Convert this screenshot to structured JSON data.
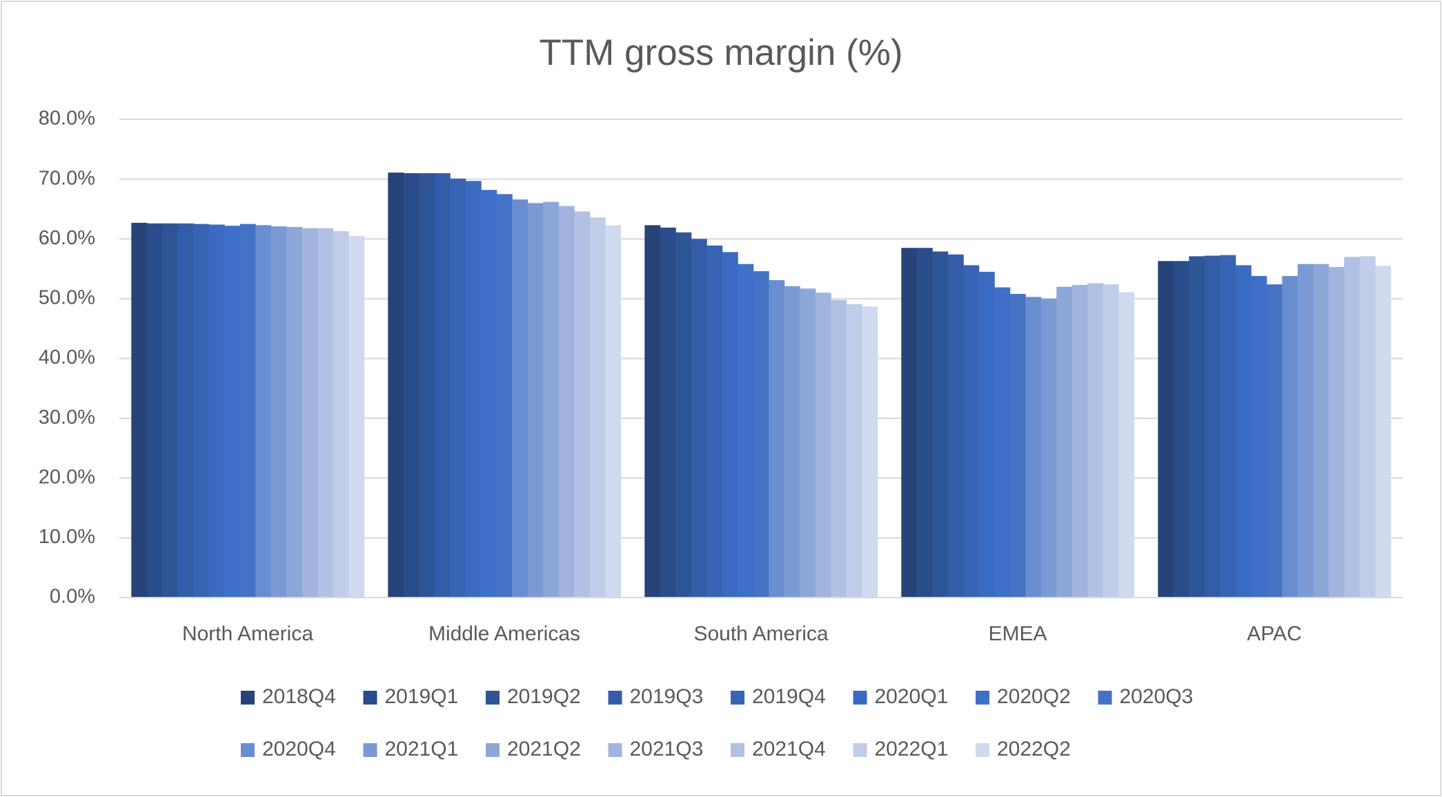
{
  "chart_data": {
    "type": "bar",
    "title": "TTM gross margin (%)",
    "categories": [
      "North America",
      "Middle Americas",
      "South America",
      "EMEA",
      "APAC"
    ],
    "series": [
      {
        "name": "2018Q4",
        "color": "#264478",
        "values": [
          62.7,
          71.1,
          62.3,
          58.5,
          56.3
        ]
      },
      {
        "name": "2019Q1",
        "color": "#2b4c8a",
        "values": [
          62.6,
          71.0,
          61.9,
          58.5,
          56.3
        ]
      },
      {
        "name": "2019Q2",
        "color": "#305597",
        "values": [
          62.6,
          71.0,
          61.1,
          57.9,
          57.1
        ]
      },
      {
        "name": "2019Q3",
        "color": "#335da8",
        "values": [
          62.6,
          71.0,
          60.0,
          57.4,
          57.2
        ]
      },
      {
        "name": "2019Q4",
        "color": "#3764b5",
        "values": [
          62.5,
          70.1,
          58.9,
          55.6,
          57.3
        ]
      },
      {
        "name": "2020Q1",
        "color": "#3b6bc1",
        "values": [
          62.4,
          69.7,
          57.8,
          54.5,
          55.6
        ]
      },
      {
        "name": "2020Q2",
        "color": "#3f70c9",
        "values": [
          62.2,
          68.2,
          55.8,
          51.9,
          53.8
        ]
      },
      {
        "name": "2020Q3",
        "color": "#4472c4",
        "values": [
          62.5,
          67.5,
          54.6,
          50.8,
          52.4
        ]
      },
      {
        "name": "2020Q4",
        "color": "#698ed0",
        "values": [
          62.3,
          66.6,
          53.1,
          50.3,
          53.8
        ]
      },
      {
        "name": "2021Q1",
        "color": "#7b9ad4",
        "values": [
          62.1,
          66.0,
          52.1,
          50.0,
          55.8
        ]
      },
      {
        "name": "2021Q2",
        "color": "#8da7d9",
        "values": [
          62.0,
          66.2,
          51.7,
          52.0,
          55.8
        ]
      },
      {
        "name": "2021Q3",
        "color": "#a0b4de",
        "values": [
          61.8,
          65.5,
          51.0,
          52.3,
          55.3
        ]
      },
      {
        "name": "2021Q4",
        "color": "#b1c1e3",
        "values": [
          61.8,
          64.6,
          49.8,
          52.6,
          57.0
        ]
      },
      {
        "name": "2022Q1",
        "color": "#c1cde8",
        "values": [
          61.3,
          63.6,
          49.1,
          52.4,
          57.1
        ]
      },
      {
        "name": "2022Q2",
        "color": "#d0d9ee",
        "values": [
          60.5,
          62.3,
          48.7,
          51.1,
          55.5
        ]
      }
    ],
    "ylim": [
      0,
      80
    ],
    "yticks": [
      {
        "value": 0,
        "label": "0.0%"
      },
      {
        "value": 10,
        "label": "10.0%"
      },
      {
        "value": 20,
        "label": "20.0%"
      },
      {
        "value": 30,
        "label": "30.0%"
      },
      {
        "value": 40,
        "label": "40.0%"
      },
      {
        "value": 50,
        "label": "50.0%"
      },
      {
        "value": 60,
        "label": "60.0%"
      },
      {
        "value": 70,
        "label": "70.0%"
      },
      {
        "value": 80,
        "label": "80.0%"
      }
    ],
    "grid": true,
    "legend": "bottom"
  }
}
